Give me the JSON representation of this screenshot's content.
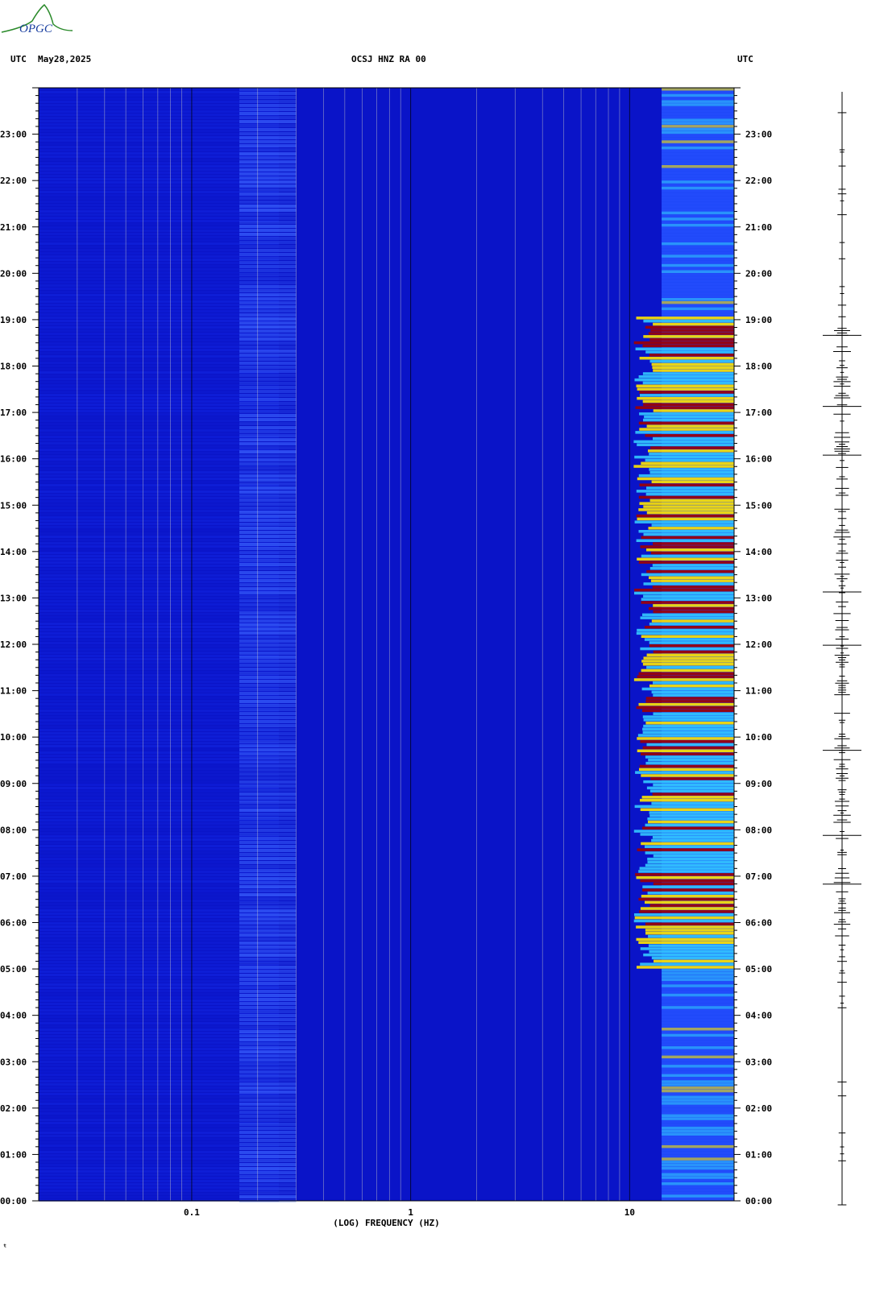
{
  "logo": {
    "text": "OPGC",
    "color": "#2a8a2a"
  },
  "header": {
    "left_utc": "UTC",
    "date": "May28,2025",
    "title": "OCSJ HNZ RA 00",
    "right_utc": "UTC"
  },
  "footer_mark": "ᵗ",
  "colors": {
    "background": "#0a14c8",
    "low": "#1428e6",
    "mid": "#33c8ff",
    "high": "#ffe600",
    "peak": "#a00000",
    "ref_line": "#c8c8c8",
    "decade_line": "#000000"
  },
  "chart_data": {
    "type": "heatmap",
    "title": "OCSJ HNZ RA 00",
    "xlabel": "(LOG) FREQUENCY (HZ)",
    "ylabel": "UTC",
    "x_scale": "log",
    "xlim": [
      0.02,
      30
    ],
    "ylim": [
      "00:00",
      "24:00"
    ],
    "x_tick_labels": [
      "0.1",
      "1",
      "10"
    ],
    "x_ticks": [
      0.1,
      1,
      10
    ],
    "y_tick_labels": [
      "00:00",
      "01:00",
      "02:00",
      "03:00",
      "04:00",
      "05:00",
      "06:00",
      "07:00",
      "08:00",
      "09:00",
      "10:00",
      "11:00",
      "12:00",
      "13:00",
      "14:00",
      "15:00",
      "16:00",
      "17:00",
      "18:00",
      "19:00",
      "20:00",
      "21:00",
      "22:00",
      "23:00"
    ],
    "high_energy_band_hz": [
      14,
      30
    ],
    "high_energy_period_utc": [
      "05:00",
      "19:00"
    ],
    "events_utc": [
      "06:55",
      "07:58",
      "09:48",
      "12:04",
      "13:13",
      "16:10",
      "17:13",
      "18:45"
    ]
  }
}
